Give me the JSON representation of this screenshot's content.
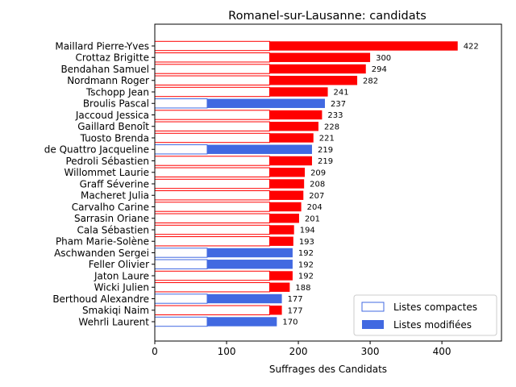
{
  "chart_data": {
    "type": "bar",
    "orientation": "horizontal",
    "stacked": true,
    "title": "Romanel-sur-Lausanne: candidats",
    "xlabel": "Suffrages des Candidats",
    "ylabel": "",
    "xlim": [
      0,
      483
    ],
    "xticks": [
      "0",
      "100",
      "200",
      "300",
      "400"
    ],
    "xtick_values": [
      0,
      100,
      200,
      300,
      400
    ],
    "grid": false,
    "legend_position": "bottom-right",
    "categories": [
      "Maillard Pierre-Yves",
      "Crottaz Brigitte",
      "Bendahan Samuel",
      "Nordmann Roger",
      "Tschopp Jean",
      "Broulis Pascal",
      "Jaccoud Jessica",
      "Gaillard Benoît",
      "Tuosto Brenda",
      "de Quattro Jacqueline",
      "Pedroli Sébastien",
      "Willommet Laurie",
      "Graff Séverine",
      "Macheret Julia",
      "Carvalho Carine",
      "Sarrasin Oriane",
      "Cala Sébastien",
      "Pham Marie-Solène",
      "Aschwanden Sergei",
      "Feller Olivier",
      "Jaton Laure",
      "Wicki Julien",
      "Berthoud Alexandre",
      "Smakiqi Naim",
      "Wehrli Laurent"
    ],
    "bar_colors": [
      "#ff0000",
      "#ff0000",
      "#ff0000",
      "#ff0000",
      "#ff0000",
      "#4169e1",
      "#ff0000",
      "#ff0000",
      "#ff0000",
      "#4169e1",
      "#ff0000",
      "#ff0000",
      "#ff0000",
      "#ff0000",
      "#ff0000",
      "#ff0000",
      "#ff0000",
      "#ff0000",
      "#4169e1",
      "#4169e1",
      "#ff0000",
      "#ff0000",
      "#4169e1",
      "#ff0000",
      "#4169e1"
    ],
    "series": [
      {
        "name": "Listes compactes",
        "style": "outline",
        "values": [
          160,
          160,
          160,
          160,
          160,
          73,
          160,
          160,
          160,
          73,
          160,
          160,
          160,
          160,
          160,
          160,
          160,
          160,
          73,
          73,
          160,
          160,
          73,
          160,
          73
        ]
      },
      {
        "name": "Listes modifiées",
        "style": "filled",
        "values": [
          262,
          140,
          134,
          122,
          81,
          164,
          73,
          68,
          61,
          146,
          59,
          49,
          48,
          47,
          44,
          41,
          34,
          33,
          119,
          119,
          32,
          28,
          104,
          17,
          97
        ]
      }
    ],
    "totals": [
      422,
      300,
      294,
      282,
      241,
      237,
      233,
      228,
      221,
      219,
      219,
      209,
      208,
      207,
      204,
      201,
      194,
      193,
      192,
      192,
      192,
      188,
      177,
      177,
      170
    ],
    "legend": {
      "entries": [
        "Listes compactes",
        "Listes modifiées"
      ],
      "colors": [
        "#4169e1",
        "#4169e1"
      ]
    }
  }
}
